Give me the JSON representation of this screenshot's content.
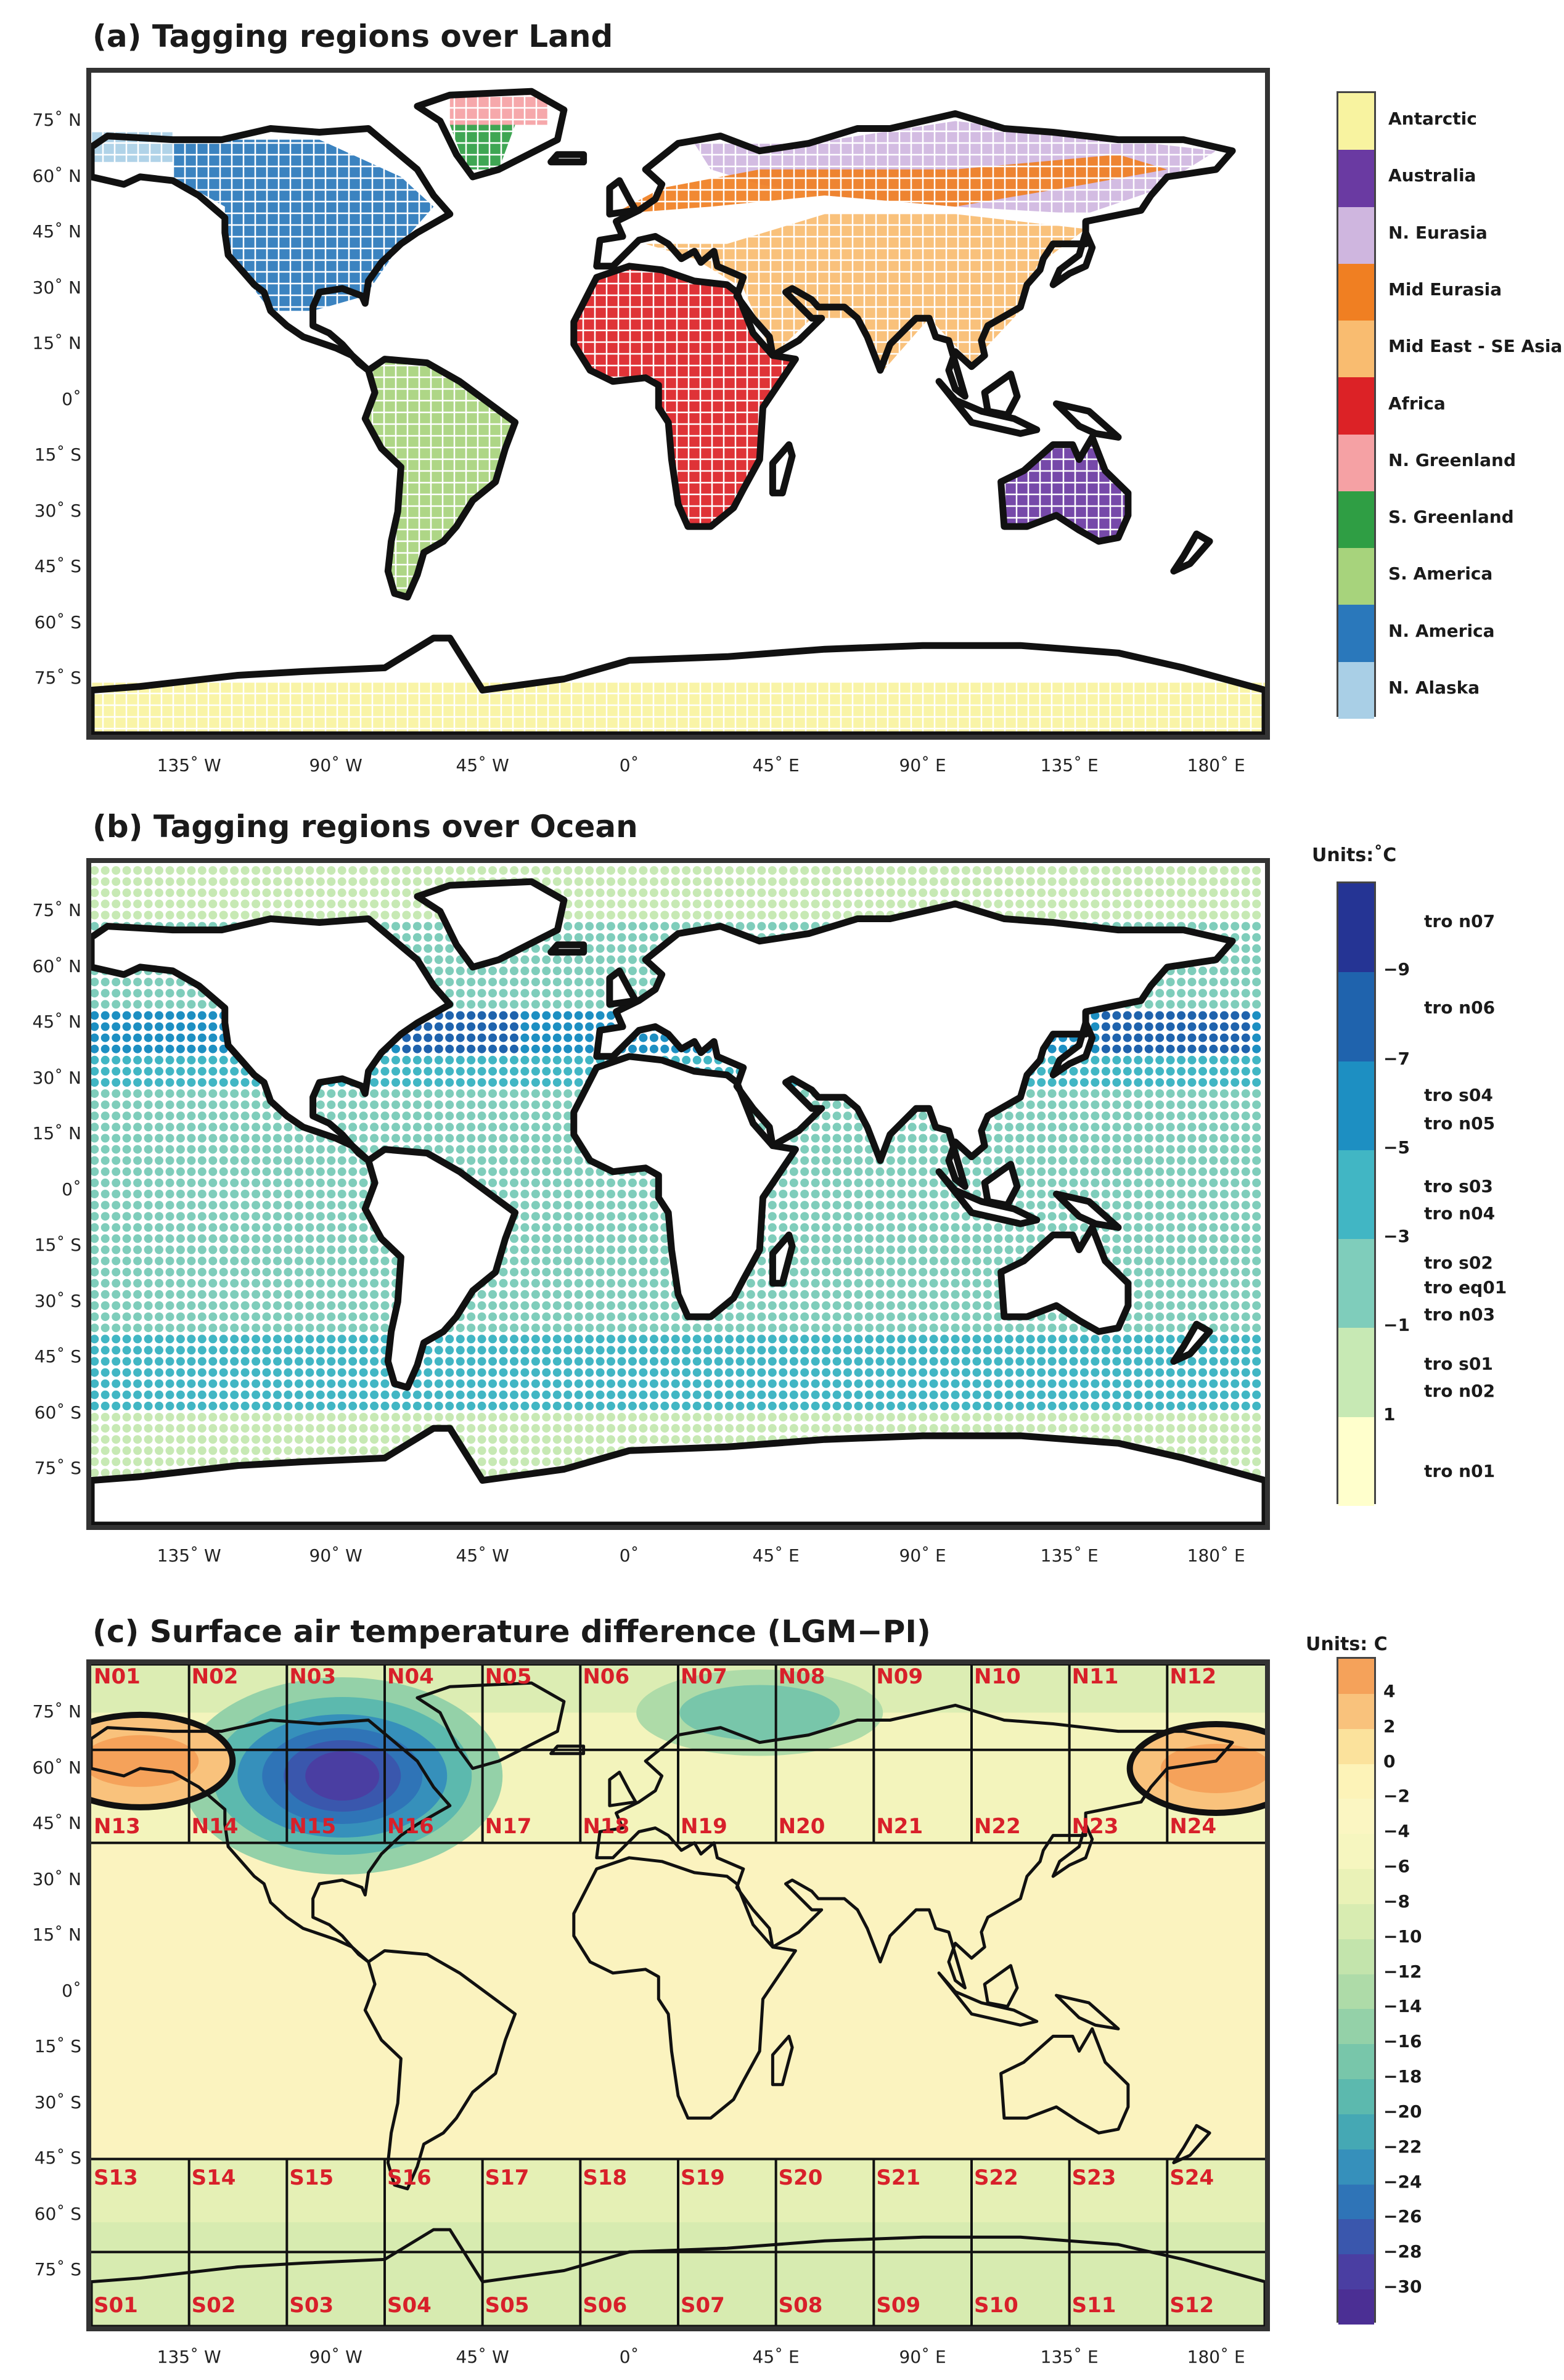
{
  "panels": {
    "a": {
      "title": "(a) Tagging regions over Land",
      "legend": [
        {
          "label": "Antarctic",
          "color": "#f8f3a0"
        },
        {
          "label": "Australia",
          "color": "#6a3aa2"
        },
        {
          "label": "N. Eurasia",
          "color": "#cfb6df"
        },
        {
          "label": "Mid Eurasia",
          "color": "#f07f22"
        },
        {
          "label": "Mid East - SE Asia",
          "color": "#f9bc70"
        },
        {
          "label": "Africa",
          "color": "#dc2226"
        },
        {
          "label": "N. Greenland",
          "color": "#f5a1a4"
        },
        {
          "label": "S. Greenland",
          "color": "#2f9e44"
        },
        {
          "label": "S. America",
          "color": "#a7d37c"
        },
        {
          "label": "N. America",
          "color": "#2a78bb"
        },
        {
          "label": "N. Alaska",
          "color": "#a9cfe6"
        }
      ]
    },
    "b": {
      "title": "(b) Tagging regions over Ocean",
      "units": "Units:˚C",
      "ticks": [
        "−9",
        "−7",
        "−5",
        "−3",
        "−1",
        "1"
      ],
      "colors": [
        "#253494",
        "#1f63ad",
        "#1d8fc2",
        "#41b6c4",
        "#7fcdbb",
        "#c7e9b4",
        "#ffffcc"
      ],
      "labels": [
        "tro n07",
        "tro n06",
        "tro s04",
        "tro n05",
        "tro s03",
        "tro n04",
        "tro s02",
        "tro eq01",
        "tro n03",
        "tro s01",
        "tro n02",
        "tro n01"
      ]
    },
    "c": {
      "title": "(c) Surface air temperature difference (LGM−PI)",
      "units": "Units: C",
      "ticks": [
        "4",
        "2",
        "0",
        "−2",
        "−4",
        "−6",
        "−8",
        "−10",
        "−12",
        "−14",
        "−16",
        "−18",
        "−20",
        "−22",
        "−24",
        "−26",
        "−28",
        "−30"
      ],
      "colors": [
        "#f5a25a",
        "#f9c27c",
        "#fbe29c",
        "#fdf3b8",
        "#fbf6c2",
        "#f6f6bf",
        "#eaf2b7",
        "#d8ecb1",
        "#c3e4ac",
        "#aedba8",
        "#94d1a8",
        "#78c6aa",
        "#5cb9ae",
        "#45a8b4",
        "#3690bb",
        "#2f74b7",
        "#3a57ad",
        "#4a3ea2",
        "#4b2f94"
      ],
      "north_labels_top": [
        "N01",
        "N02",
        "N03",
        "N04",
        "N05",
        "N06",
        "N07",
        "N08",
        "N09",
        "N10",
        "N11",
        "N12"
      ],
      "north_labels_bottom": [
        "N13",
        "N14",
        "N15",
        "N16",
        "N17",
        "N18",
        "N19",
        "N20",
        "N21",
        "N22",
        "N23",
        "N24"
      ],
      "south_labels_top": [
        "S13",
        "S14",
        "S15",
        "S16",
        "S17",
        "S18",
        "S19",
        "S20",
        "S21",
        "S22",
        "S23",
        "S24"
      ],
      "south_labels_bottom": [
        "S01",
        "S02",
        "S03",
        "S04",
        "S05",
        "S06",
        "S07",
        "S08",
        "S09",
        "S10",
        "S11",
        "S12"
      ]
    }
  },
  "lat_labels": [
    "75˚ N",
    "60˚ N",
    "45˚ N",
    "30˚ N",
    "15˚ N",
    "0˚",
    "15˚ S",
    "30˚ S",
    "45˚ S",
    "60˚ S",
    "75˚ S"
  ],
  "lon_labels": [
    "135˚ W",
    "90˚ W",
    "45˚ W",
    "0˚",
    "45˚ E",
    "90˚ E",
    "135˚ E",
    "180˚ E"
  ]
}
